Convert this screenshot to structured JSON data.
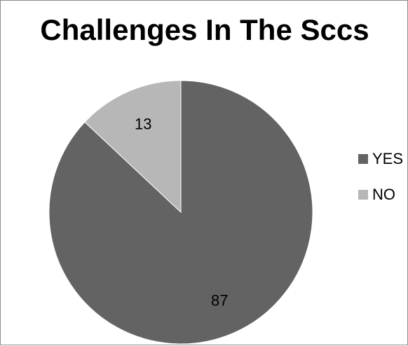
{
  "chart_data": {
    "type": "pie",
    "title": "Challenges In The Sccs",
    "slices": [
      {
        "label": "YES",
        "value": 87,
        "color": "#636363"
      },
      {
        "label": "NO",
        "value": 13,
        "color": "#b7b7b7"
      }
    ],
    "data_labels_shown": true,
    "legend_position": "right",
    "start_angle": "12 o'clock",
    "direction": "clockwise-from-NO"
  }
}
